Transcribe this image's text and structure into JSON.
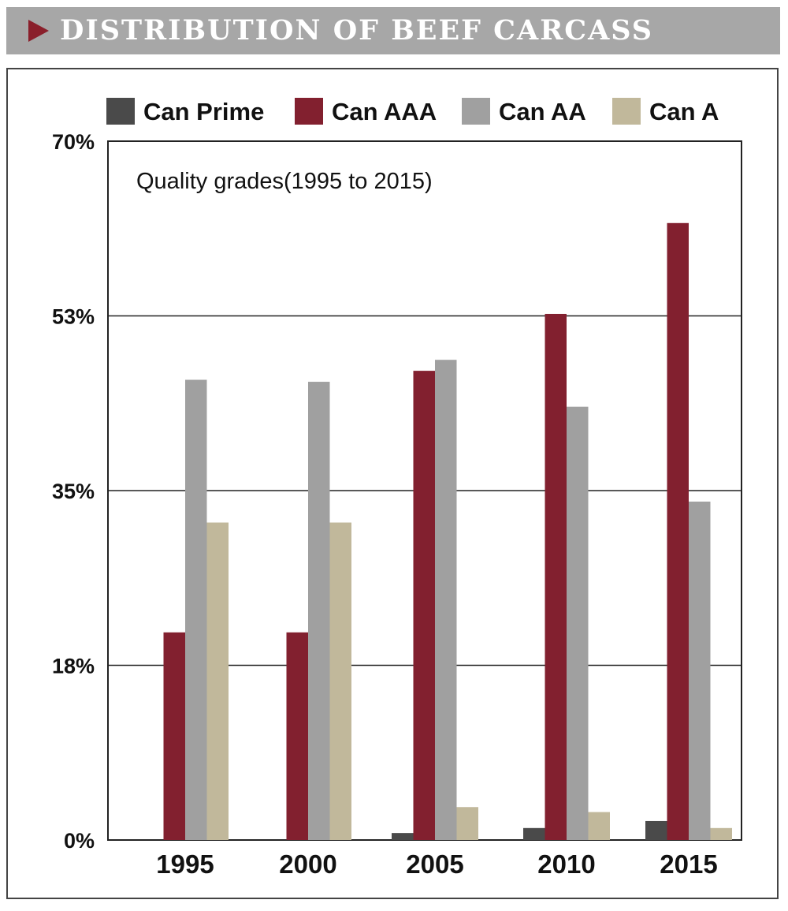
{
  "header": {
    "title": "DISTRIBUTION OF BEEF CARCASS"
  },
  "chart_data": {
    "type": "bar",
    "title": "Quality grades(1995 to 2015)",
    "xlabel": "",
    "ylabel": "",
    "categories": [
      "1995",
      "2000",
      "2005",
      "2010",
      "2015"
    ],
    "series": [
      {
        "name": "Can Prime",
        "color": "#4a4a4a",
        "values": [
          0,
          0,
          0.7,
          1.2,
          1.9
        ]
      },
      {
        "name": "Can AAA",
        "color": "#82202f",
        "values": [
          20.8,
          20.8,
          47.0,
          52.7,
          61.8
        ]
      },
      {
        "name": "Can AA",
        "color": "#a0a0a0",
        "values": [
          46.1,
          45.9,
          48.1,
          43.4,
          33.9
        ]
      },
      {
        "name": "Can A",
        "color": "#c1b89b",
        "values": [
          31.8,
          31.8,
          3.3,
          2.8,
          1.2
        ]
      }
    ],
    "ylim": [
      0,
      70
    ],
    "yticks": [
      "0%",
      "18%",
      "35%",
      "53%",
      "70%"
    ],
    "ytick_values": [
      0,
      17.5,
      35,
      52.5,
      70
    ],
    "grid": true,
    "legend_position": "top"
  }
}
